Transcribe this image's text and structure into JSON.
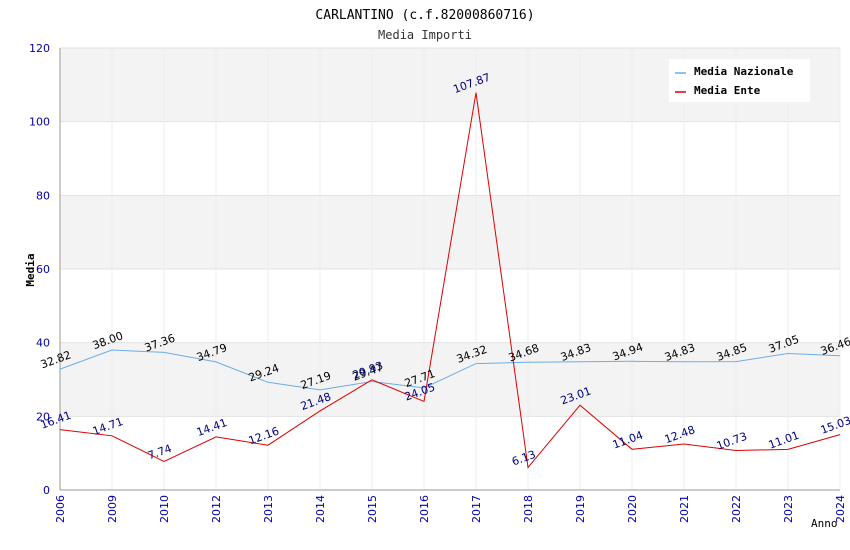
{
  "chart_data": {
    "type": "line",
    "title": "CARLANTINO (c.f.82000860716)",
    "subtitle": "Media Importi",
    "xlabel": "Anno",
    "ylabel": "Media",
    "ylim": [
      0,
      120
    ],
    "yticks": [
      0,
      20,
      40,
      60,
      80,
      100,
      120
    ],
    "categories": [
      "2006",
      "2009",
      "2010",
      "2012",
      "2013",
      "2014",
      "2015",
      "2016",
      "2017",
      "2018",
      "2019",
      "2020",
      "2021",
      "2022",
      "2023",
      "2024"
    ],
    "grid": true,
    "legend_position": "top-right",
    "series": [
      {
        "name": "Media Nazionale",
        "color": "#6aaee8",
        "label_color": "#000000",
        "values": [
          32.82,
          38.0,
          37.36,
          34.79,
          29.24,
          27.19,
          29.47,
          27.71,
          34.32,
          34.68,
          34.83,
          34.94,
          34.83,
          34.85,
          37.05,
          36.46
        ],
        "labels": [
          "32.82",
          "38.00",
          "37.36",
          "34.79",
          "29.24",
          "27.19",
          "29.47",
          "27.71",
          "34.32",
          "34.68",
          "34.83",
          "34.94",
          "34.83",
          "34.85",
          "37.05",
          "36.46"
        ]
      },
      {
        "name": "Media Ente",
        "color": "#dd0000",
        "label_color": "#000080",
        "values": [
          16.41,
          14.71,
          7.74,
          14.41,
          12.16,
          21.48,
          29.93,
          24.05,
          107.87,
          6.13,
          23.01,
          11.04,
          12.48,
          10.73,
          11.01,
          15.03
        ],
        "labels": [
          "16.41",
          "14.71",
          "7.74",
          "14.41",
          "12.16",
          "21.48",
          "29.93",
          "24.05",
          "107.87",
          "6.13",
          "23.01",
          "11.04",
          "12.48",
          "10.73",
          "11.01",
          "15.03"
        ]
      }
    ]
  }
}
